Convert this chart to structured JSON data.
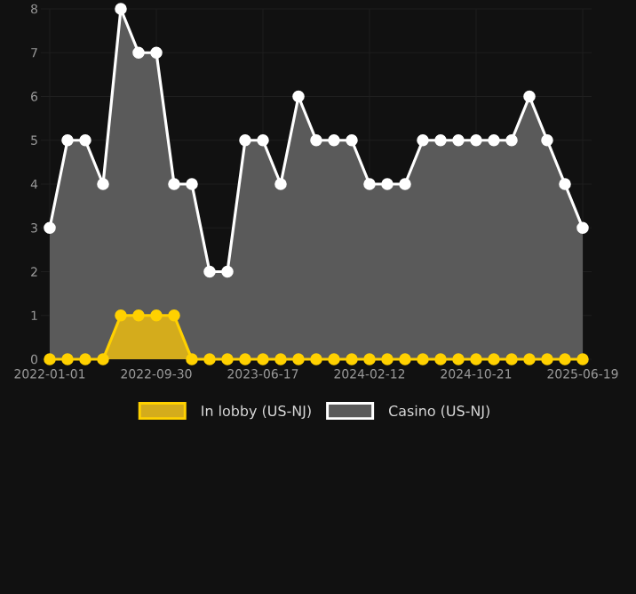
{
  "chart_data": {
    "type": "area",
    "categories": [
      "2022-01-01",
      null,
      null,
      null,
      null,
      null,
      "2022-09-30",
      null,
      null,
      null,
      null,
      null,
      "2023-06-17",
      null,
      null,
      null,
      null,
      null,
      "2024-02-12",
      null,
      null,
      null,
      null,
      null,
      "2024-10-21",
      null,
      null,
      null,
      null,
      null,
      "2025-06-19"
    ],
    "series": [
      {
        "name": "In lobby (US-NJ)",
        "color": "#ffd100",
        "values": [
          0,
          0,
          0,
          0,
          1,
          1,
          1,
          1,
          0,
          0,
          0,
          0,
          0,
          0,
          0,
          0,
          0,
          0,
          0,
          0,
          0,
          0,
          0,
          0,
          0,
          0,
          0,
          0,
          0,
          0,
          0
        ]
      },
      {
        "name": "Casino (US-NJ)",
        "color": "#ffffff",
        "values": [
          3,
          5,
          5,
          4,
          8,
          7,
          7,
          4,
          4,
          2,
          2,
          5,
          5,
          4,
          6,
          5,
          5,
          5,
          4,
          4,
          4,
          5,
          5,
          5,
          5,
          5,
          5,
          6,
          5,
          4,
          3
        ]
      }
    ],
    "ylim": [
      0,
      8
    ],
    "yticks": [
      0,
      1,
      2,
      3,
      4,
      5,
      6,
      7,
      8
    ],
    "grid": true,
    "legend": "bottom",
    "marker": "circle"
  }
}
